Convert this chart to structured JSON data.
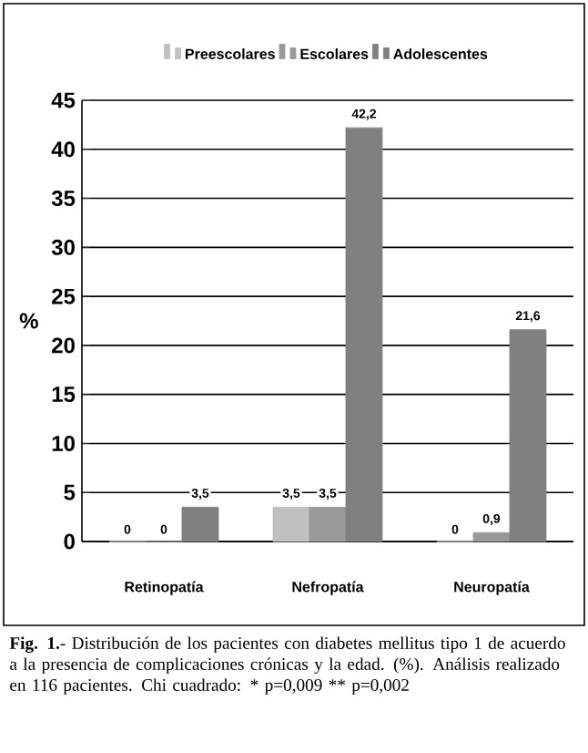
{
  "chart_data": {
    "type": "bar",
    "categories": [
      "Retinopatía",
      "Nefropatía",
      "Neuropatía"
    ],
    "ylabel": "%",
    "series": [
      {
        "name": "Preescolares",
        "color": "#c0c0c0",
        "values": [
          0,
          3.5,
          0
        ],
        "value_labels": [
          "0",
          "3,5",
          "0"
        ]
      },
      {
        "name": "Escolares",
        "color": "#999999",
        "values": [
          0,
          3.5,
          0.9
        ],
        "value_labels": [
          "0",
          "3,5",
          "0,9"
        ]
      },
      {
        "name": "Adolescentes",
        "color": "#808080",
        "values": [
          3.5,
          42.2,
          21.6
        ],
        "value_labels": [
          "3,5",
          "42,2",
          "21,6"
        ]
      }
    ],
    "ylim": [
      0,
      45
    ],
    "yticks": [
      0,
      5,
      10,
      15,
      20,
      25,
      30,
      35,
      40,
      45
    ],
    "grid": "y",
    "legend": "top",
    "annotations": [
      "**Fig. 1.**- Distribución de los pacientes con diabetes mellitus tipo 1 de acuerdo a la presencia de complicaciones crónicas y la edad. (%).  Análisis realizado en 116 pacientes.  Chi cuadrado: * p=0,009   ** p=0,002"
    ]
  }
}
